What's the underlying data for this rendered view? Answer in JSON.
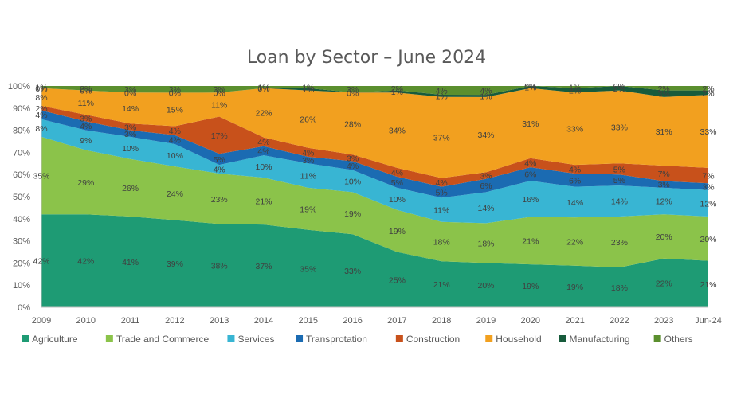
{
  "chart_data": {
    "type": "area",
    "stacked": true,
    "title": "Loan by Sector – June 2024",
    "xlabel": "",
    "ylabel": "",
    "ylim": [
      0,
      100
    ],
    "y_ticks": [
      "0%",
      "10%",
      "20%",
      "30%",
      "40%",
      "50%",
      "60%",
      "70%",
      "80%",
      "90%",
      "100%"
    ],
    "categories": [
      "2009",
      "2010",
      "2011",
      "2012",
      "2013",
      "2014",
      "2015",
      "2016",
      "2017",
      "2018",
      "2019",
      "2020",
      "2021",
      "2022",
      "2023",
      "Jun-24"
    ],
    "legend_position": "bottom",
    "grid": false,
    "series": [
      {
        "name": "Agriculture",
        "color": "#1e9b74",
        "values": [
          42,
          42,
          41,
          39,
          38,
          37,
          35,
          33,
          25,
          21,
          20,
          19,
          19,
          18,
          22,
          21
        ]
      },
      {
        "name": "Trade and Commerce",
        "color": "#8bc34a",
        "values": [
          35,
          29,
          26,
          24,
          23,
          21,
          19,
          19,
          19,
          18,
          18,
          21,
          22,
          23,
          20,
          20
        ]
      },
      {
        "name": "Services",
        "color": "#38b5d3",
        "values": [
          8,
          9,
          10,
          10,
          4,
          10,
          11,
          10,
          10,
          11,
          14,
          16,
          14,
          14,
          12,
          12
        ]
      },
      {
        "name": "Transprotation",
        "color": "#1b6bb2",
        "values": [
          4,
          4,
          3,
          4,
          5,
          4,
          3,
          4,
          5,
          5,
          6,
          6,
          6,
          5,
          3,
          3
        ]
      },
      {
        "name": "Construction",
        "color": "#c8511b",
        "values": [
          2,
          3,
          3,
          4,
          17,
          4,
          4,
          3,
          4,
          4,
          3,
          4,
          4,
          5,
          7,
          7
        ]
      },
      {
        "name": "Household",
        "color": "#f2a01f",
        "values": [
          8,
          11,
          14,
          15,
          11,
          22,
          26,
          28,
          34,
          37,
          34,
          31,
          33,
          33,
          31,
          33
        ]
      },
      {
        "name": "Manufacturing",
        "color": "#175b3c",
        "values": [
          0,
          0,
          0,
          0,
          0,
          0,
          1,
          0,
          1,
          1,
          1,
          1,
          2,
          2,
          3,
          2
        ]
      },
      {
        "name": "Others",
        "color": "#5b8f2e",
        "values": [
          1,
          2,
          3,
          3,
          3,
          1,
          1,
          3,
          2,
          4,
          4,
          0,
          1,
          0,
          2,
          2
        ]
      }
    ]
  }
}
